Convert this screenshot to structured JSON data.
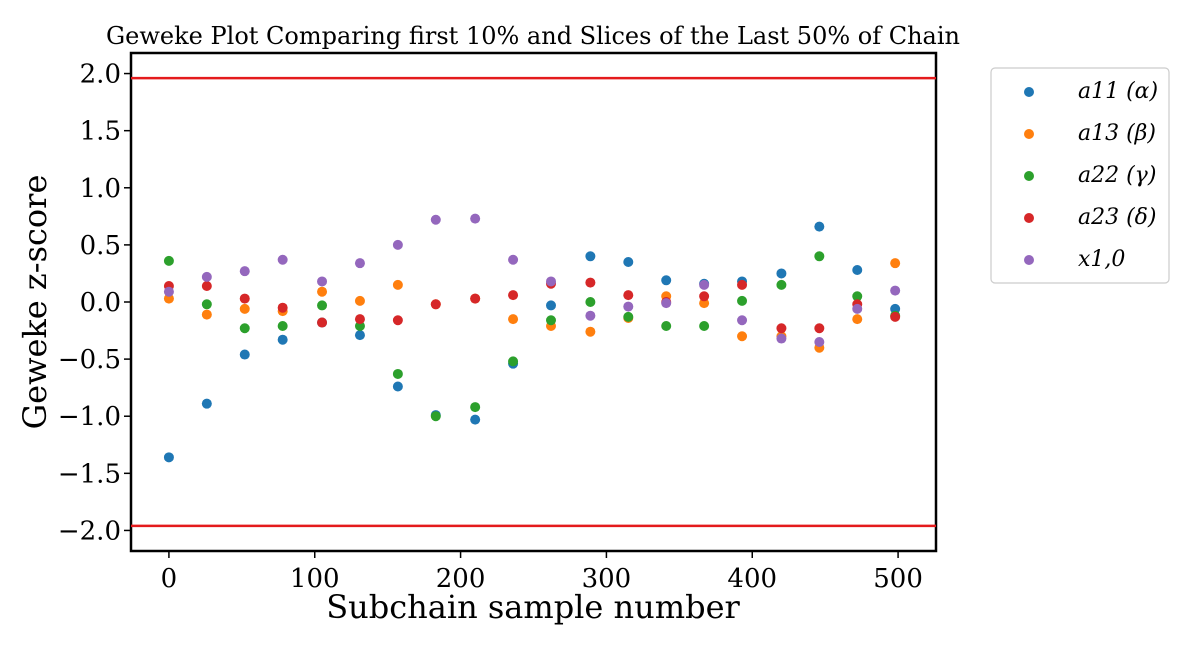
{
  "chart_data": {
    "type": "scatter",
    "title": "Geweke Plot Comparing first 10% and Slices of the Last 50% of Chain",
    "xlabel": "Subchain sample number",
    "ylabel": "Geweke z-score",
    "xlim": [
      -26,
      526
    ],
    "ylim": [
      -2.18,
      2.18
    ],
    "xticks": [
      0,
      100,
      200,
      300,
      400,
      500
    ],
    "yticks": [
      2.0,
      1.5,
      1.0,
      0.5,
      0.0,
      -0.5,
      -1.0,
      -1.5,
      -2.0
    ],
    "xtick_labels": [
      "0",
      "100",
      "200",
      "300",
      "400",
      "500"
    ],
    "ytick_labels": [
      "2.0",
      "1.5",
      "1.0",
      "0.5",
      "0.0",
      "−0.5",
      "−1.0",
      "−1.5",
      "−2.0"
    ],
    "hlines": [
      {
        "y": 1.96,
        "color": "#e41a1c"
      },
      {
        "y": -1.96,
        "color": "#e41a1c"
      }
    ],
    "legend_position": "outside-right",
    "x": [
      0,
      26,
      52,
      78,
      105,
      131,
      157,
      183,
      210,
      236,
      262,
      289,
      315,
      341,
      367,
      393,
      420,
      446,
      472,
      498
    ],
    "series": [
      {
        "name": "a11 (α)",
        "color": "#1f77b4",
        "values": [
          -1.36,
          -0.89,
          -0.46,
          -0.33,
          -0.18,
          -0.29,
          -0.74,
          -0.99,
          -1.03,
          -0.54,
          -0.03,
          0.4,
          0.35,
          0.19,
          0.16,
          0.18,
          0.25,
          0.66,
          0.28,
          -0.06
        ]
      },
      {
        "name": "a13 (β)",
        "color": "#ff7f0e",
        "values": [
          0.03,
          -0.11,
          -0.06,
          -0.08,
          0.09,
          0.01,
          0.15,
          -0.02,
          0.03,
          -0.15,
          -0.21,
          -0.26,
          -0.14,
          0.05,
          -0.01,
          -0.3,
          -0.3,
          -0.4,
          -0.15,
          0.34
        ]
      },
      {
        "name": "a22 (γ)",
        "color": "#2ca02c",
        "values": [
          0.36,
          -0.02,
          -0.23,
          -0.21,
          -0.03,
          -0.21,
          -0.63,
          -1.0,
          -0.92,
          -0.52,
          -0.16,
          0.0,
          -0.13,
          -0.21,
          -0.21,
          0.01,
          0.15,
          0.4,
          0.05,
          -0.12
        ]
      },
      {
        "name": "a23 (δ)",
        "color": "#d62728",
        "values": [
          0.14,
          0.14,
          0.03,
          -0.05,
          -0.18,
          -0.15,
          -0.16,
          -0.02,
          0.03,
          0.06,
          0.16,
          0.17,
          0.06,
          0.0,
          0.05,
          0.15,
          -0.23,
          -0.23,
          -0.02,
          -0.13
        ]
      },
      {
        "name": "x1,0",
        "color": "#9467bd",
        "values": [
          0.09,
          0.22,
          0.27,
          0.37,
          0.18,
          0.34,
          0.5,
          0.72,
          0.73,
          0.37,
          0.18,
          -0.12,
          -0.04,
          -0.01,
          0.15,
          -0.16,
          -0.32,
          -0.35,
          -0.06,
          0.1
        ]
      }
    ]
  }
}
